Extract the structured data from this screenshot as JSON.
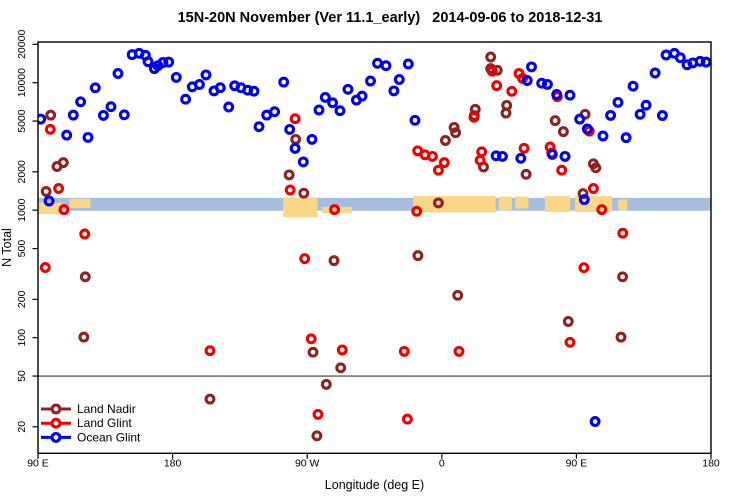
{
  "title": "15N-20N November (Ver 11.1_early)   2014-09-06 to 2018-12-31",
  "legend": {
    "items": [
      "Land Nadir",
      "Land Glint",
      "Ocean Glint"
    ],
    "colors": [
      "#8B2323",
      "#EE0000",
      "#0000F0"
    ]
  },
  "colors": {
    "band": "#A6BDDE",
    "patch": "#FAD687",
    "frame": "#000000",
    "ref_line": "#3a3a3a"
  },
  "chart_data": {
    "type": "scatter",
    "title": "15N-20N November (Ver 11.1_early)   2014-09-06 to 2018-12-31",
    "xlabel": "Longitude (deg E)",
    "ylabel": "N Total",
    "x_axis": {
      "range": [
        90,
        540
      ],
      "ticks": [
        {
          "value": 90,
          "label": "90 E"
        },
        {
          "value": 180,
          "label": "180"
        },
        {
          "value": 270,
          "label": "90 W"
        },
        {
          "value": 360,
          "label": "0"
        },
        {
          "value": 450,
          "label": "90 E"
        },
        {
          "value": 540,
          "label": "180"
        }
      ]
    },
    "y_axis": {
      "scale": "log",
      "range": [
        12,
        21000
      ],
      "ticks": [
        {
          "value": 20000,
          "label": "20000"
        },
        {
          "value": 10000,
          "label": "10000"
        },
        {
          "value": 5000,
          "label": "5000"
        },
        {
          "value": 2000,
          "label": "2000"
        },
        {
          "value": 1000,
          "label": "1000"
        },
        {
          "value": 500,
          "label": "500"
        },
        {
          "value": 200,
          "label": "200"
        },
        {
          "value": 100,
          "label": "100"
        },
        {
          "value": 50,
          "label": "50"
        },
        {
          "value": 20,
          "label": "20"
        }
      ]
    },
    "annotations": {
      "horizontal_line_y": 50,
      "band": {
        "n_from": 990,
        "n_to": 1250
      },
      "orange_patches": [
        {
          "lon_from": 90,
          "lon_to": 106,
          "n_top": 1150,
          "n_bottom": 930
        },
        {
          "lon_from": 111,
          "lon_to": 125,
          "n_top": 1230,
          "n_bottom": 1040
        },
        {
          "lon_from": 254,
          "lon_to": 277,
          "n_top": 1260,
          "n_bottom": 880
        },
        {
          "lon_from": 280,
          "lon_to": 300,
          "n_top": 1060,
          "n_bottom": 950
        },
        {
          "lon_from": 341,
          "lon_to": 396,
          "n_top": 1290,
          "n_bottom": 960
        },
        {
          "lon_from": 398,
          "lon_to": 407,
          "n_top": 1280,
          "n_bottom": 1000
        },
        {
          "lon_from": 409,
          "lon_to": 418,
          "n_top": 1280,
          "n_bottom": 1030
        },
        {
          "lon_from": 429,
          "lon_to": 446,
          "n_top": 1290,
          "n_bottom": 970
        },
        {
          "lon_from": 449,
          "lon_to": 474,
          "n_top": 1290,
          "n_bottom": 970
        },
        {
          "lon_from": 478,
          "lon_to": 484,
          "n_top": 1210,
          "n_bottom": 1000
        }
      ]
    },
    "series": [
      {
        "name": "Land Nadir",
        "color": "#8B2323",
        "points": [
          [
            95.5,
            1400
          ],
          [
            98.5,
            5570
          ],
          [
            102.7,
            2200
          ],
          [
            106.9,
            2360
          ],
          [
            120.6,
            101
          ],
          [
            121.6,
            300
          ],
          [
            205,
            33
          ],
          [
            257.9,
            1890
          ],
          [
            262.3,
            3590
          ],
          [
            267.7,
            1360
          ],
          [
            273.9,
            77
          ],
          [
            276.5,
            17
          ],
          [
            282.8,
            43
          ],
          [
            287.9,
            402
          ],
          [
            292.4,
            58
          ],
          [
            344,
            440
          ],
          [
            357.7,
            1140
          ],
          [
            362.4,
            3520
          ],
          [
            368.2,
            4460
          ],
          [
            369.2,
            4050
          ],
          [
            370.6,
            215
          ],
          [
            381.7,
            5520
          ],
          [
            382.4,
            6180
          ],
          [
            387.9,
            2180
          ],
          [
            392.7,
            15900
          ],
          [
            392.7,
            12900
          ],
          [
            397.1,
            12500
          ],
          [
            402.9,
            5770
          ],
          [
            403.4,
            6640
          ],
          [
            416.4,
            1910
          ],
          [
            435.8,
            5040
          ],
          [
            441.3,
            4130
          ],
          [
            444.6,
            134
          ],
          [
            454.4,
            1350
          ],
          [
            455.8,
            5650
          ],
          [
            461.4,
            2310
          ],
          [
            463,
            2150
          ],
          [
            479.8,
            101
          ],
          [
            480.9,
            300
          ]
        ]
      },
      {
        "name": "Land Glint",
        "color": "#EE0000",
        "points": [
          [
            94.9,
            355
          ],
          [
            98.2,
            4310
          ],
          [
            103.8,
            1480
          ],
          [
            107.4,
            1010
          ],
          [
            121.2,
            650
          ],
          [
            205,
            79
          ],
          [
            258.6,
            1440
          ],
          [
            261.9,
            5220
          ],
          [
            268.3,
            417
          ],
          [
            272.7,
            98
          ],
          [
            277.2,
            25
          ],
          [
            288.3,
            1010
          ],
          [
            293.5,
            80
          ],
          [
            334.9,
            78
          ],
          [
            337,
            23
          ],
          [
            343.2,
            980
          ],
          [
            343.9,
            2920
          ],
          [
            348.8,
            2720
          ],
          [
            353.7,
            2640
          ],
          [
            357.7,
            2060
          ],
          [
            361.7,
            2360
          ],
          [
            371.5,
            78
          ],
          [
            381.5,
            5350
          ],
          [
            385.6,
            2460
          ],
          [
            386.7,
            2870
          ],
          [
            393.8,
            12300
          ],
          [
            396.7,
            9480
          ],
          [
            406.8,
            8560
          ],
          [
            411.6,
            11800
          ],
          [
            414,
            10800
          ],
          [
            415,
            3060
          ],
          [
            432.4,
            3130
          ],
          [
            433.5,
            2810
          ],
          [
            437.2,
            7770
          ],
          [
            440.2,
            2060
          ],
          [
            445.7,
            92
          ],
          [
            455,
            354
          ],
          [
            458.6,
            4170
          ],
          [
            461.4,
            1480
          ],
          [
            467,
            1010
          ],
          [
            481,
            660
          ]
        ]
      },
      {
        "name": "Ocean Glint",
        "color": "#0000F0",
        "points": [
          [
            91.8,
            5180
          ],
          [
            97.4,
            1180
          ],
          [
            109.2,
            3880
          ],
          [
            113.6,
            5570
          ],
          [
            118.5,
            7080
          ],
          [
            123.4,
            3720
          ],
          [
            128.3,
            9120
          ],
          [
            133.7,
            5540
          ],
          [
            138.8,
            6480
          ],
          [
            143.5,
            11800
          ],
          [
            147.7,
            5600
          ],
          [
            152.9,
            16600
          ],
          [
            157.7,
            17000
          ],
          [
            161.8,
            16400
          ],
          [
            163.6,
            14600
          ],
          [
            167.8,
            12900
          ],
          [
            170.2,
            13600
          ],
          [
            173.6,
            14400
          ],
          [
            177.4,
            14500
          ],
          [
            182.5,
            11000
          ],
          [
            188.7,
            7420
          ],
          [
            193.2,
            9280
          ],
          [
            197.9,
            9680
          ],
          [
            202.3,
            11500
          ],
          [
            207.7,
            8620
          ],
          [
            211.9,
            9130
          ],
          [
            217.5,
            6440
          ],
          [
            221.5,
            9460
          ],
          [
            225.7,
            9130
          ],
          [
            230.2,
            8730
          ],
          [
            234.4,
            8570
          ],
          [
            237.8,
            4520
          ],
          [
            242.9,
            5570
          ],
          [
            248.2,
            5920
          ],
          [
            254.3,
            10100
          ],
          [
            258.3,
            4300
          ],
          [
            261.9,
            3050
          ],
          [
            267.4,
            2390
          ],
          [
            273.2,
            3590
          ],
          [
            277.9,
            6110
          ],
          [
            282.1,
            7660
          ],
          [
            287,
            6950
          ],
          [
            291.9,
            6030
          ],
          [
            297.3,
            8870
          ],
          [
            302.9,
            7300
          ],
          [
            306.7,
            7850
          ],
          [
            312.3,
            10300
          ],
          [
            317,
            14200
          ],
          [
            322.7,
            13600
          ],
          [
            328,
            8620
          ],
          [
            331.6,
            10600
          ],
          [
            337.6,
            14000
          ],
          [
            342.1,
            5070
          ],
          [
            396.3,
            2670
          ],
          [
            400.5,
            2640
          ],
          [
            412.8,
            2550
          ],
          [
            417.1,
            10400
          ],
          [
            420,
            13300
          ],
          [
            426.8,
            9900
          ],
          [
            430.6,
            9700
          ],
          [
            433.9,
            2740
          ],
          [
            436.8,
            8080
          ],
          [
            442.4,
            2640
          ],
          [
            445.7,
            7980
          ],
          [
            452.2,
            5180
          ],
          [
            455.3,
            1210
          ],
          [
            457.3,
            4330
          ],
          [
            462.5,
            22
          ],
          [
            467.8,
            3820
          ],
          [
            472.9,
            5540
          ],
          [
            477.8,
            7010
          ],
          [
            483.2,
            3710
          ],
          [
            487.9,
            9390
          ],
          [
            492.6,
            5650
          ],
          [
            496.6,
            6660
          ],
          [
            502.6,
            11900
          ],
          [
            507.5,
            5530
          ],
          [
            510,
            16500
          ],
          [
            515.5,
            17000
          ],
          [
            519.5,
            15700
          ],
          [
            524,
            13800
          ],
          [
            527.8,
            14300
          ],
          [
            532.7,
            14700
          ],
          [
            536.7,
            14500
          ]
        ]
      }
    ]
  }
}
